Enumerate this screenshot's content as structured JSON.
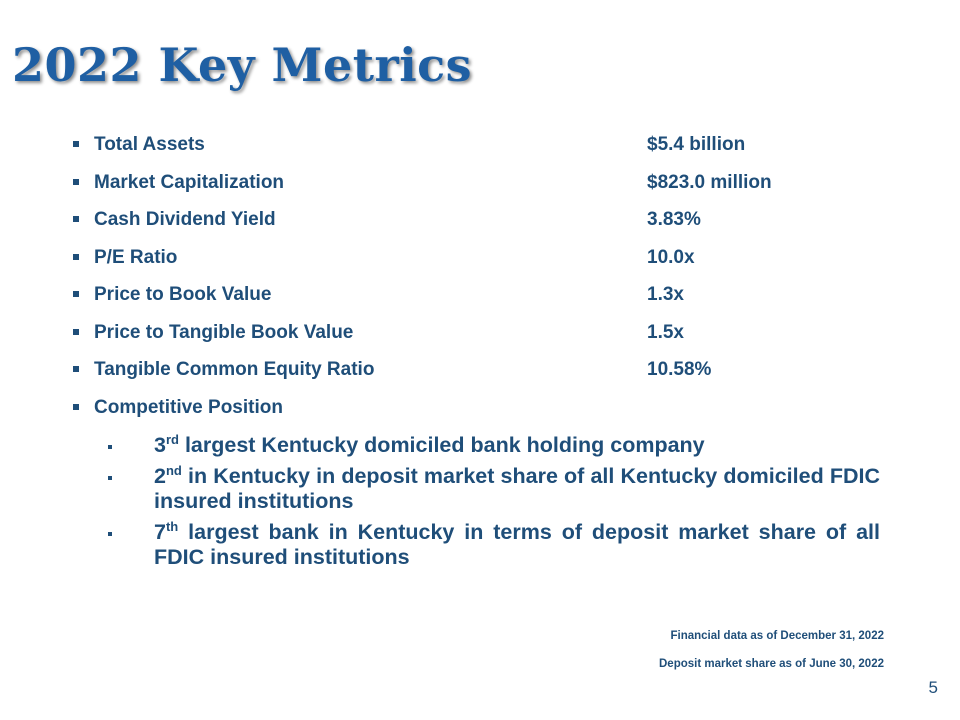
{
  "slide": {
    "title": "2022 Key Metrics",
    "page_number": "5"
  },
  "metrics": [
    {
      "label": "Total Assets",
      "value": "$5.4 billion"
    },
    {
      "label": "Market Capitalization",
      "value": "$823.0 million"
    },
    {
      "label": "Cash Dividend Yield",
      "value": "3.83%"
    },
    {
      "label": "P/E Ratio",
      "value": "10.0x"
    },
    {
      "label": "Price to Book Value",
      "value": "1.3x"
    },
    {
      "label": "Price to Tangible Book Value",
      "value": "1.5x"
    },
    {
      "label": "Tangible Common Equity Ratio",
      "value": "10.58%"
    },
    {
      "label": "Competitive Position",
      "value": ""
    }
  ],
  "competitive": [
    {
      "rank": "3",
      "suffix": "rd",
      "text": " largest Kentucky domiciled bank holding company"
    },
    {
      "rank": "2",
      "suffix": "nd",
      "text": " in Kentucky in deposit market share of all Kentucky domiciled FDIC insured institutions"
    },
    {
      "rank": "7",
      "suffix": "th",
      "text": " largest bank in Kentucky in terms of deposit market share of all FDIC insured institutions"
    }
  ],
  "notes": {
    "financial": "Financial data as of December 31, 2022",
    "deposit": "Deposit market share as of June 30, 2022"
  },
  "colors": {
    "title": "#1f5fa3",
    "text": "#1f4e79"
  }
}
